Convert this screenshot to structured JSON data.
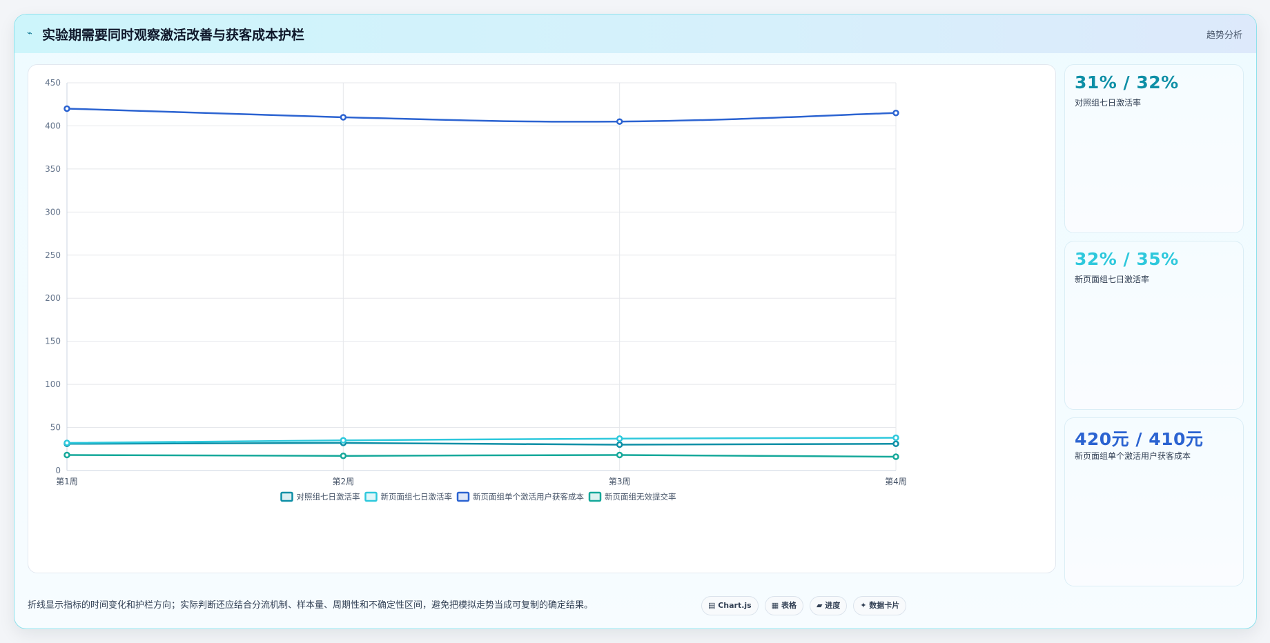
{
  "header": {
    "icon": "line-chart-icon",
    "title": "实验期需要同时观察激活改善与获客成本护栏",
    "tag": "趋势分析"
  },
  "colors": {
    "control_activation": "#0e8fa6",
    "new_activation": "#2ec8dc",
    "cac": "#2b63d1",
    "invalid_rate": "#15a89a"
  },
  "chart_data": {
    "type": "line",
    "categories": [
      "第1周",
      "第2周",
      "第3周",
      "第4周"
    ],
    "ylim": [
      0,
      450
    ],
    "yticks": [
      0,
      50,
      100,
      150,
      200,
      250,
      300,
      350,
      400,
      450
    ],
    "grid": true,
    "legend_position": "bottom",
    "series": [
      {
        "name": "对照组七日激活率",
        "color": "#0e8fa6",
        "values": [
          31,
          32,
          30,
          31
        ]
      },
      {
        "name": "新页面组七日激活率",
        "color": "#2ec8dc",
        "values": [
          32,
          35,
          37,
          38
        ]
      },
      {
        "name": "新页面组单个激活用户获客成本",
        "color": "#2b63d1",
        "values": [
          420,
          410,
          405,
          415
        ]
      },
      {
        "name": "新页面组无效提交率",
        "color": "#15a89a",
        "values": [
          18,
          17,
          18,
          16
        ]
      }
    ]
  },
  "kpis": [
    {
      "value": "31% / 32%",
      "label": "对照组七日激活率",
      "color": "#0e8fa6"
    },
    {
      "value": "32% / 35%",
      "label": "新页面组七日激活率",
      "color": "#2ec8dc"
    },
    {
      "value": "420元 / 410元",
      "label": "新页面组单个激活用户获客成本",
      "color": "#2b63d1"
    }
  ],
  "footer": {
    "note": "折线显示指标的时间变化和护栏方向；实际判断还应结合分流机制、样本量、周期性和不确定性区间，避免把模拟走势当成可复制的确定结果。",
    "badges": [
      "▤ Chart.js",
      "▦ 表格",
      "▰ 进度",
      "✦ 数据卡片"
    ]
  }
}
